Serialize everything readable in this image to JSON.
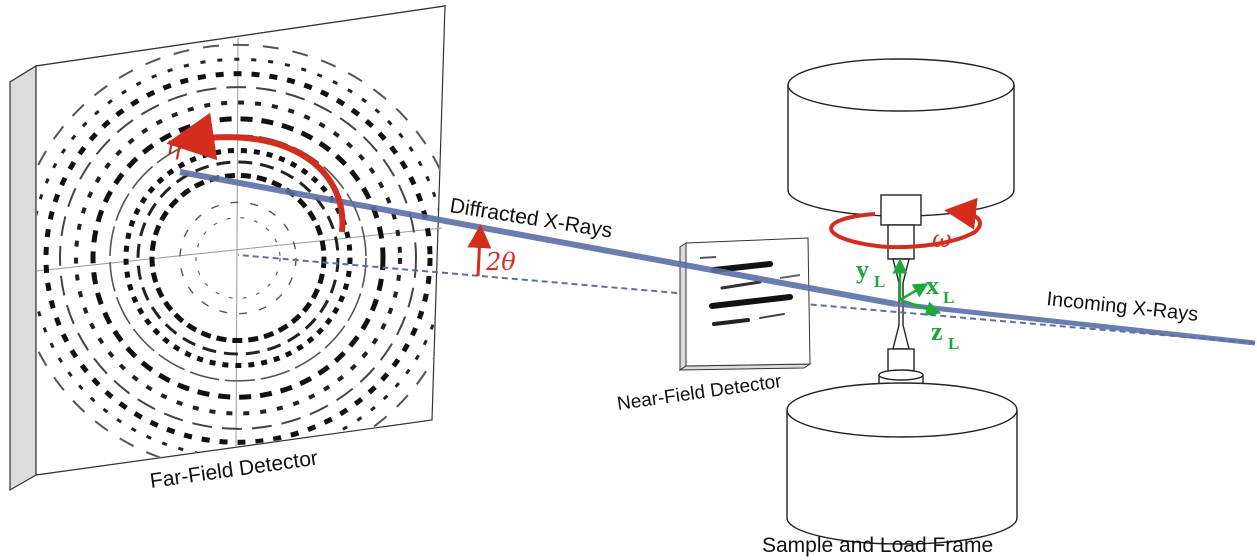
{
  "labels": {
    "far_field": "Far-Field Detector",
    "near_field": "Near-Field Detector",
    "diffracted": "Diffracted X-Rays",
    "incoming": "Incoming X-Rays",
    "sample": "Sample and Load Frame"
  },
  "angles": {
    "eta": "η",
    "two_theta": "2θ",
    "omega": "ω"
  },
  "axes": {
    "x": "x",
    "y": "y",
    "z": "z",
    "subscript": "L"
  },
  "colors": {
    "beam": "#5b6fa8",
    "angle_arrow": "#d42d1e",
    "axis": "#1fa83a",
    "outline": "#222222"
  }
}
